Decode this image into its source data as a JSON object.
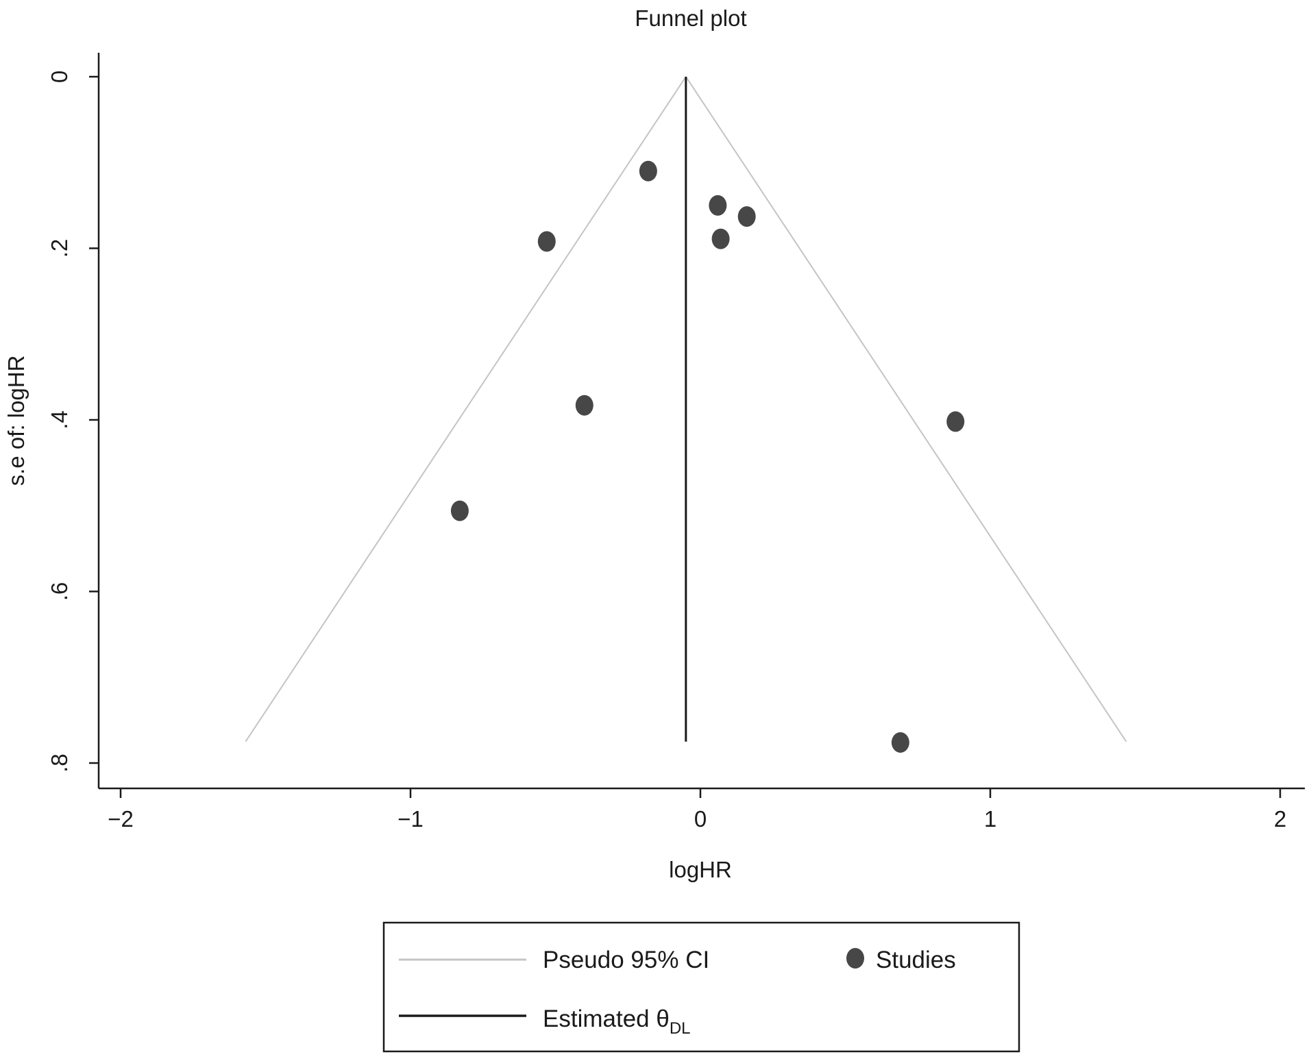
{
  "chart_data": {
    "type": "scatter",
    "title": "Funnel plot",
    "xlabel": "logHR",
    "ylabel": "s.e of: logHR",
    "xlim": [
      -2.05,
      2.05
    ],
    "ylim": [
      0,
      0.8
    ],
    "y_reversed": true,
    "x_ticks": [
      {
        "value": -2,
        "label": "−2"
      },
      {
        "value": -1,
        "label": "−1"
      },
      {
        "value": 0,
        "label": "0"
      },
      {
        "value": 1,
        "label": "1"
      },
      {
        "value": 2,
        "label": "2"
      }
    ],
    "y_ticks": [
      {
        "value": 0,
        "label": "0"
      },
      {
        "value": 0.2,
        "label": ".2"
      },
      {
        "value": 0.4,
        "label": ".4"
      },
      {
        "value": 0.6,
        "label": ".6"
      },
      {
        "value": 0.8,
        "label": ".8"
      }
    ],
    "grid": false,
    "legend_position": "bottom",
    "estimate": -0.05,
    "se_max": 0.775,
    "ci_multiplier": 1.96,
    "studies": [
      {
        "x": -0.18,
        "y": 0.11
      },
      {
        "x": 0.06,
        "y": 0.15
      },
      {
        "x": 0.16,
        "y": 0.163
      },
      {
        "x": 0.07,
        "y": 0.189
      },
      {
        "x": -0.53,
        "y": 0.192
      },
      {
        "x": -0.4,
        "y": 0.383
      },
      {
        "x": 0.88,
        "y": 0.402
      },
      {
        "x": -0.83,
        "y": 0.506
      },
      {
        "x": 0.69,
        "y": 0.776
      }
    ],
    "legend": {
      "ci_label": "Pseudo 95% CI",
      "studies_label": "Studies",
      "estimate_label": "Estimated θ",
      "estimate_subscript": "DL"
    },
    "colors": {
      "ci_line": "#c4c4c4",
      "estimate_line": "#1a1a1a",
      "points": "#474747",
      "axis": "#1a1a1a"
    }
  }
}
